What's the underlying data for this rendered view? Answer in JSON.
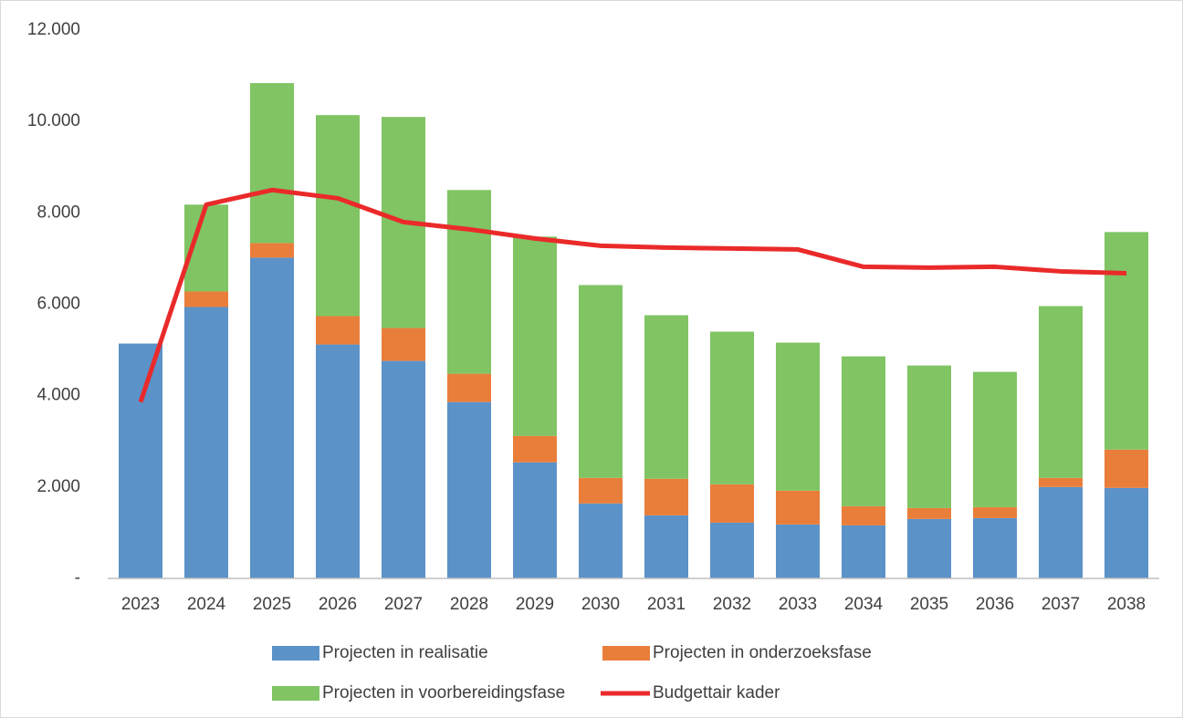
{
  "chart_data": {
    "type": "bar",
    "stacked": true,
    "categories": [
      "2023",
      "2024",
      "2025",
      "2026",
      "2027",
      "2028",
      "2029",
      "2030",
      "2031",
      "2032",
      "2033",
      "2034",
      "2035",
      "2036",
      "2037",
      "2038"
    ],
    "series": [
      {
        "name": "Projecten in realisatie",
        "color": "#5b92c8",
        "values": [
          5140,
          5940,
          7020,
          5120,
          4760,
          3860,
          2540,
          1640,
          1380,
          1220,
          1180,
          1160,
          1300,
          1320,
          2000,
          1980
        ]
      },
      {
        "name": "Projecten in onderzoeksfase",
        "color": "#e97e3b",
        "values": [
          0,
          340,
          320,
          620,
          720,
          620,
          580,
          560,
          800,
          840,
          740,
          420,
          240,
          240,
          200,
          840
        ]
      },
      {
        "name": "Projecten in voorbereidingsfase",
        "color": "#80c463",
        "values": [
          0,
          1900,
          3500,
          4400,
          4620,
          4020,
          4360,
          4220,
          3580,
          3340,
          3240,
          3280,
          3120,
          2960,
          3760,
          4760
        ]
      },
      {
        "name": "Budgettair kader",
        "color": "#ea2a2a",
        "type": "line",
        "values": [
          3860,
          8180,
          8500,
          8320,
          7800,
          7640,
          7440,
          7280,
          7240,
          7220,
          7200,
          6820,
          6800,
          6820,
          6720,
          6680
        ]
      }
    ],
    "ylim": [
      0,
      12000
    ],
    "yticks": [
      {
        "value": 0,
        "label": "-"
      },
      {
        "value": 2000,
        "label": "2.000"
      },
      {
        "value": 4000,
        "label": "4.000"
      },
      {
        "value": 6000,
        "label": "6.000"
      },
      {
        "value": 8000,
        "label": "8.000"
      },
      {
        "value": 10000,
        "label": "10.000"
      },
      {
        "value": 12000,
        "label": "12.000"
      }
    ],
    "legend": "bottom"
  }
}
